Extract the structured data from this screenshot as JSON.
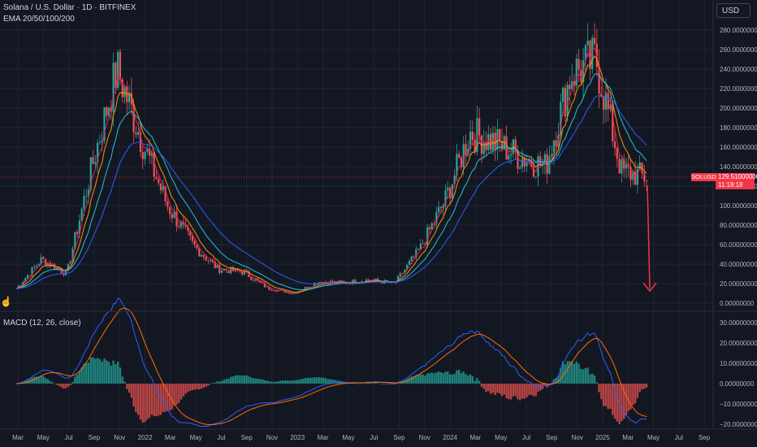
{
  "header": {
    "symbol_line": "Solana / U.S. Dollar · 1D · BITFINEX",
    "indicator_line": "EMA 20/50/100/200"
  },
  "currency_button": "USD",
  "price_tag": {
    "symbol": "SOLUSD",
    "price": "129.51000000",
    "countdown": "11:18:18"
  },
  "macd": {
    "label": "MACD (12, 26, close)",
    "y_ticks": [
      "30.00000000",
      "20.00000000",
      "10.00000000",
      "0.00000000",
      "−10.00000000",
      "−20.00000000"
    ]
  },
  "colors": {
    "background": "#131722",
    "up": "#26a69a",
    "down": "#ef5350",
    "ema20": "#e91e63",
    "ema50": "#ff9800",
    "ema100": "#26c6da",
    "ema200": "#2962ff",
    "arrow": "#f23645"
  },
  "price_axis": [
    "280.00000000",
    "260.00000000",
    "240.00000000",
    "220.00000000",
    "200.00000000",
    "180.00000000",
    "160.00000000",
    "140.00000000",
    "120.00000000",
    "100.00000000",
    "80.00000000",
    "60.00000000",
    "40.00000000",
    "20.00000000",
    "0.00000000"
  ],
  "time_axis": [
    "Mar",
    "May",
    "Jul",
    "Sep",
    "Nov",
    "2022",
    "Mar",
    "May",
    "Jul",
    "Sep",
    "Nov",
    "2023",
    "Mar",
    "May",
    "Jul",
    "Sep",
    "Nov",
    "2024",
    "Mar",
    "May",
    "Jul",
    "Sep",
    "Nov",
    "2025",
    "Mar",
    "May",
    "Jul",
    "Sep"
  ],
  "chart_data": {
    "type": "line",
    "title": "Solana / U.S. Dollar · 1D · BITFINEX",
    "x": [
      "2021-03",
      "2021-05",
      "2021-07",
      "2021-09",
      "2021-11",
      "2022-01",
      "2022-03",
      "2022-05",
      "2022-07",
      "2022-09",
      "2022-11",
      "2023-01",
      "2023-03",
      "2023-05",
      "2023-07",
      "2023-09",
      "2023-11",
      "2024-01",
      "2024-03",
      "2024-05",
      "2024-07",
      "2024-09",
      "2024-11",
      "2025-01",
      "2025-03",
      "2025-04"
    ],
    "ylim": [
      0,
      290
    ],
    "series": [
      {
        "values": [
          15,
          45,
          30,
          140,
          240,
          165,
          100,
          60,
          35,
          32,
          15,
          10,
          22,
          21,
          24,
          20,
          55,
          105,
          175,
          165,
          150,
          140,
          235,
          250,
          135,
          129.51
        ]
      }
    ],
    "annotations": [
      "Projected drop to ~18 (red arrow)"
    ]
  }
}
